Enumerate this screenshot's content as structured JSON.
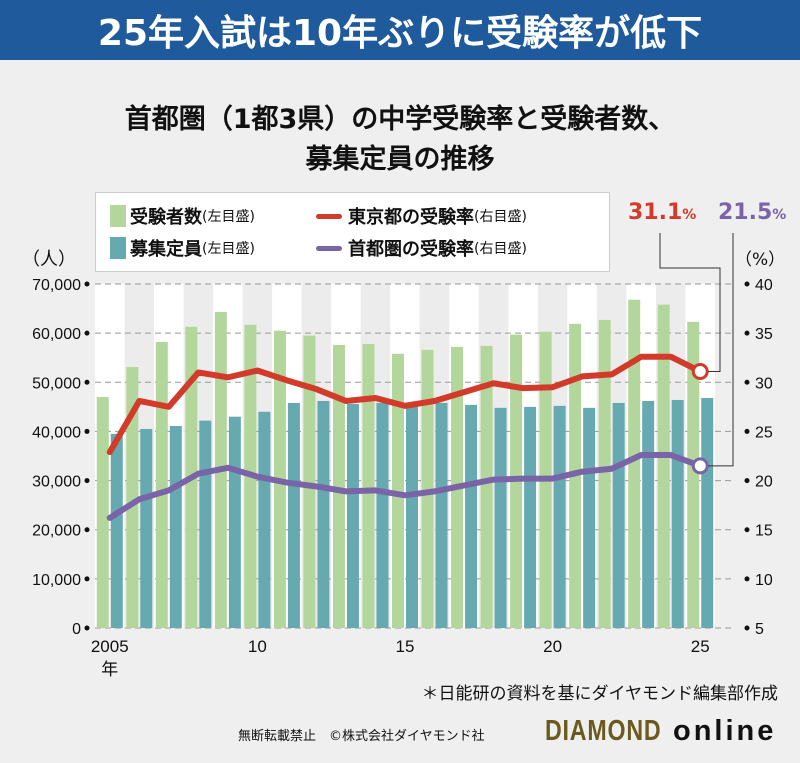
{
  "headline": "25年入試は10年ぶりに受験率が低下",
  "subtitle_line1": "首都圏（1都3県）の中学受験率と受験者数、",
  "subtitle_line2": "募集定員の推移",
  "legend": [
    {
      "label": "受験者数",
      "axis": "(左目盛)"
    },
    {
      "label": "東京都の受験率",
      "axis": "(右目盛)"
    },
    {
      "label": "募集定員",
      "axis": "(左目盛)"
    },
    {
      "label": "首都圏の受験率",
      "axis": "(右目盛)"
    }
  ],
  "callouts": {
    "tokyo_value": "31.1",
    "metro_value": "21.5",
    "unit": "%"
  },
  "note": "＊日能研の資料を基にダイヤモンド編集部作成",
  "footer": {
    "rights": "無断転載禁止　©株式会社ダイヤモンド社",
    "logo_brand": "DIAMOND",
    "logo_suffix": "online"
  },
  "colors": {
    "applicants": "#b3d69c",
    "capacity": "#66a9b0",
    "tokyo": "#d23a2a",
    "metro": "#7a64a8",
    "banner": "#1f5a9c"
  },
  "chart_data": {
    "type": "bar",
    "left_unit": "（人）",
    "right_unit": "（%）",
    "x": [
      2005,
      2006,
      2007,
      2008,
      2009,
      2010,
      2011,
      2012,
      2013,
      2014,
      2015,
      2016,
      2017,
      2018,
      2019,
      2020,
      2021,
      2022,
      2023,
      2024,
      2025
    ],
    "x_tick_labels": [
      {
        "year": 2005,
        "label": "2005"
      },
      {
        "year": 2010,
        "label": "10"
      },
      {
        "year": 2015,
        "label": "15"
      },
      {
        "year": 2020,
        "label": "20"
      },
      {
        "year": 2025,
        "label": "25"
      }
    ],
    "x_first_suffix": "年",
    "left_ylim": [
      0,
      70000
    ],
    "left_ticks": [
      "0",
      "10,000",
      "20,000",
      "30,000",
      "40,000",
      "50,000",
      "60,000",
      "70,000"
    ],
    "right_ylim": [
      5,
      40
    ],
    "right_ticks": [
      "5",
      "10",
      "15",
      "20",
      "25",
      "30",
      "35",
      "40"
    ],
    "series": [
      {
        "name": "受験者数",
        "axis": "left",
        "type": "bar",
        "values": [
          47000,
          53100,
          58200,
          61300,
          64300,
          61700,
          60500,
          59500,
          57600,
          57800,
          55800,
          56600,
          57200,
          57400,
          59700,
          60300,
          61900,
          62700,
          66800,
          65800,
          62300
        ]
      },
      {
        "name": "募集定員",
        "axis": "left",
        "type": "bar",
        "values": [
          39500,
          40500,
          41100,
          42200,
          43000,
          44000,
          45800,
          46200,
          45600,
          45800,
          45400,
          45800,
          45400,
          44800,
          45000,
          45200,
          44800,
          45800,
          46200,
          46400,
          46800
        ]
      },
      {
        "name": "東京都の受験率",
        "axis": "right",
        "type": "line",
        "values": [
          22.9,
          28.1,
          27.5,
          31.0,
          30.5,
          31.2,
          30.2,
          29.3,
          28.1,
          28.4,
          27.6,
          28.1,
          29.0,
          29.9,
          29.4,
          29.5,
          30.6,
          30.8,
          32.6,
          32.6,
          31.1
        ]
      },
      {
        "name": "首都圏の受験率",
        "axis": "right",
        "type": "line",
        "values": [
          16.2,
          18.1,
          19.0,
          20.7,
          21.3,
          20.4,
          19.8,
          19.4,
          18.9,
          19.0,
          18.5,
          18.9,
          19.5,
          20.1,
          20.2,
          20.2,
          20.9,
          21.2,
          22.6,
          22.6,
          21.5
        ]
      }
    ],
    "grid": true
  }
}
